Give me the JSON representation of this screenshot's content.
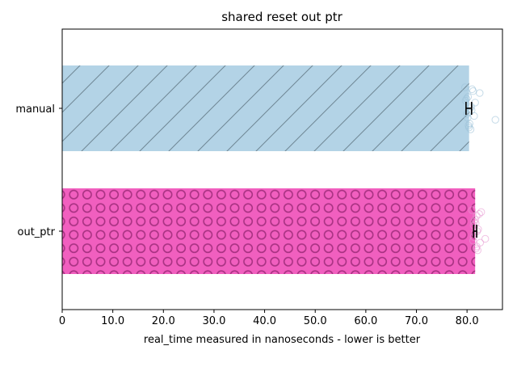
{
  "chart_data": {
    "type": "bar",
    "orientation": "horizontal",
    "title": "shared reset out ptr",
    "xlabel": "real_time measured in nanoseconds - lower is better",
    "ylabel": "",
    "categories": [
      "manual",
      "out_ptr"
    ],
    "values": [
      80.4,
      81.6
    ],
    "error_bars": [
      {
        "low": 79.8,
        "high": 80.9
      },
      {
        "low": 81.3,
        "high": 81.9
      }
    ],
    "samples": [
      [
        79.6,
        80.0,
        80.2,
        80.5,
        80.8,
        81.0,
        81.4,
        79.9,
        80.3,
        80.6,
        81.2,
        80.1,
        79.7,
        80.4,
        80.9,
        82.5,
        85.6,
        81.6,
        80.7,
        80.2
      ],
      [
        81.0,
        81.3,
        81.6,
        81.9,
        82.2,
        82.8,
        83.6,
        81.4,
        81.8,
        82.0,
        82.4,
        81.2,
        81.7,
        82.1,
        81.5,
        81.9,
        82.6,
        81.3
      ]
    ],
    "xlim": [
      0,
      87
    ],
    "xticks": [
      "0",
      "10.0",
      "20.0",
      "30.0",
      "40.0",
      "50.0",
      "60.0",
      "70.0",
      "80.0"
    ],
    "xtick_values": [
      0,
      10,
      20,
      30,
      40,
      50,
      60,
      70,
      80
    ],
    "grid": false,
    "legend": "none",
    "colors": {
      "manual": "#b3d3e6",
      "manual_hatch": "#6f8795",
      "out_ptr": "#f15fbf",
      "out_ptr_hatch": "#a83282",
      "manual_points": "#9fc3d8",
      "out_ptr_points": "#e89ad2"
    }
  }
}
